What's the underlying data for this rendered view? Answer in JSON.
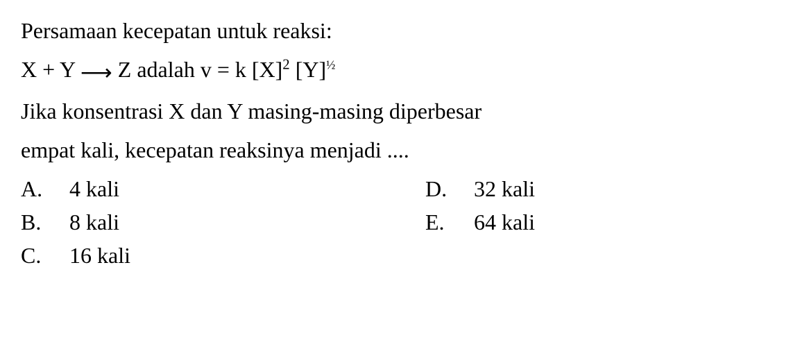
{
  "question": {
    "line1": "Persamaan kecepatan untuk reaksi:",
    "equation_prefix": "X + Y ",
    "equation_arrow": "⟶",
    "equation_mid": " Z adalah v = k [X]",
    "equation_exp1": "2",
    "equation_bracket2": " [Y]",
    "equation_exp2": "½",
    "line3": "Jika konsentrasi X dan Y masing-masing diperbesar",
    "line4": "empat kali, kecepatan reaksinya menjadi ...."
  },
  "options": {
    "a": {
      "letter": "A.",
      "text": "4 kali"
    },
    "b": {
      "letter": "B.",
      "text": "8 kali"
    },
    "c": {
      "letter": "C.",
      "text": "16 kali"
    },
    "d": {
      "letter": "D.",
      "text": "32 kali"
    },
    "e": {
      "letter": "E.",
      "text": "64 kali"
    }
  },
  "styling": {
    "font_family": "Georgia, Times New Roman, serif",
    "font_size_pt": 24,
    "text_color": "#000000",
    "background_color": "#ffffff",
    "line_height": 1.5
  }
}
